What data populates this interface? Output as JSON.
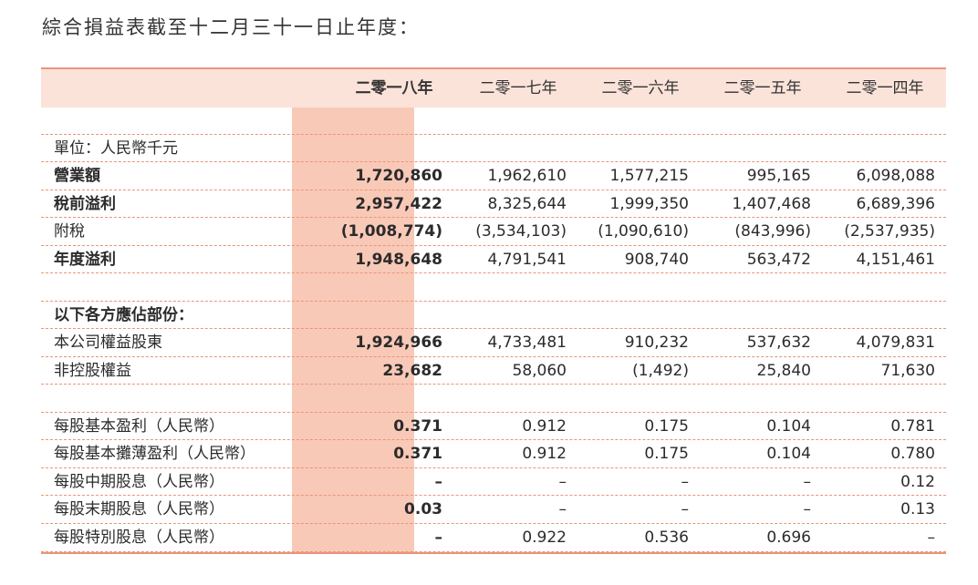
{
  "title": "綜合損益表截至十二月三十一日止年度：",
  "columns": [
    "二零一八年",
    "二零一七年",
    "二零一六年",
    "二零一五年",
    "二零一四年"
  ],
  "rows": [
    {
      "label": "",
      "values": [
        "",
        "",
        "",
        "",
        ""
      ],
      "bold": false
    },
    {
      "label": "單位：人民幣千元",
      "values": [
        "",
        "",
        "",
        "",
        ""
      ],
      "bold": false
    },
    {
      "label": "營業額",
      "values": [
        "1,720,860",
        "1,962,610",
        "1,577,215",
        "995,165",
        "6,098,088"
      ],
      "bold": true
    },
    {
      "label": "稅前溢利",
      "values": [
        "2,957,422",
        "8,325,644",
        "1,999,350",
        "1,407,468",
        "6,689,396"
      ],
      "bold": true
    },
    {
      "label": "附稅",
      "values": [
        "(1,008,774)",
        "(3,534,103)",
        "(1,090,610)",
        "(843,996)",
        "(2,537,935)"
      ],
      "bold": false
    },
    {
      "label": "年度溢利",
      "values": [
        "1,948,648",
        "4,791,541",
        "908,740",
        "563,472",
        "4,151,461"
      ],
      "bold": true
    },
    {
      "label": "",
      "values": [
        "",
        "",
        "",
        "",
        ""
      ],
      "bold": false
    },
    {
      "label": "以下各方應佔部份：",
      "values": [
        "",
        "",
        "",
        "",
        ""
      ],
      "bold": true
    },
    {
      "label": "本公司權益股東",
      "values": [
        "1,924,966",
        "4,733,481",
        "910,232",
        "537,632",
        "4,079,831"
      ],
      "bold": false
    },
    {
      "label": "非控股權益",
      "values": [
        "23,682",
        "58,060",
        "(1,492)",
        "25,840",
        "71,630"
      ],
      "bold": false
    },
    {
      "label": "",
      "values": [
        "",
        "",
        "",
        "",
        ""
      ],
      "bold": false
    },
    {
      "label": "每股基本盈利（人民幣）",
      "values": [
        "0.371",
        "0.912",
        "0.175",
        "0.104",
        "0.781"
      ],
      "bold": false
    },
    {
      "label": "每股基本攤薄盈利（人民幣）",
      "values": [
        "0.371",
        "0.912",
        "0.175",
        "0.104",
        "0.780"
      ],
      "bold": false
    },
    {
      "label": "每股中期股息（人民幣）",
      "values": [
        "–",
        "–",
        "–",
        "–",
        "0.12"
      ],
      "bold": false
    },
    {
      "label": "每股末期股息（人民幣）",
      "values": [
        "0.03",
        "–",
        "–",
        "–",
        "0.13"
      ],
      "bold": false
    },
    {
      "label": "每股特別股息（人民幣）",
      "values": [
        "–",
        "0.922",
        "0.536",
        "0.696",
        "–"
      ],
      "bold": false
    }
  ]
}
